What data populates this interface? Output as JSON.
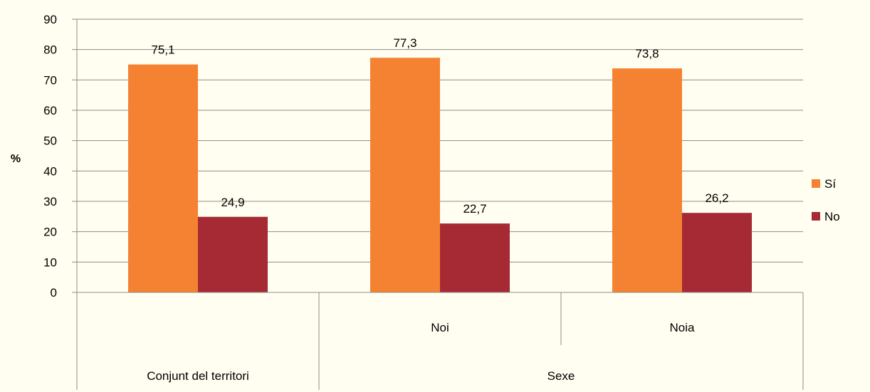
{
  "chart_data": {
    "type": "bar",
    "ylabel": "%",
    "ylim": [
      0,
      90
    ],
    "ytick_step": 10,
    "grid": true,
    "legend_position": "right",
    "categories": [
      "Conjunt del territori",
      "Noi",
      "Noia"
    ],
    "category_groups": [
      {
        "label": "Conjunt del territori",
        "members": [
          ""
        ]
      },
      {
        "label": "Sexe",
        "members": [
          "Noi",
          "Noia"
        ]
      }
    ],
    "series": [
      {
        "name": "Sí",
        "color": "#f58232",
        "values": [
          75.1,
          77.3,
          73.8
        ],
        "labels": [
          "75,1",
          "77,3",
          "73,8"
        ]
      },
      {
        "name": "No",
        "color": "#a52a33",
        "values": [
          24.9,
          22.7,
          26.2
        ],
        "labels": [
          "24,9",
          "22,7",
          "26,2"
        ]
      }
    ]
  }
}
